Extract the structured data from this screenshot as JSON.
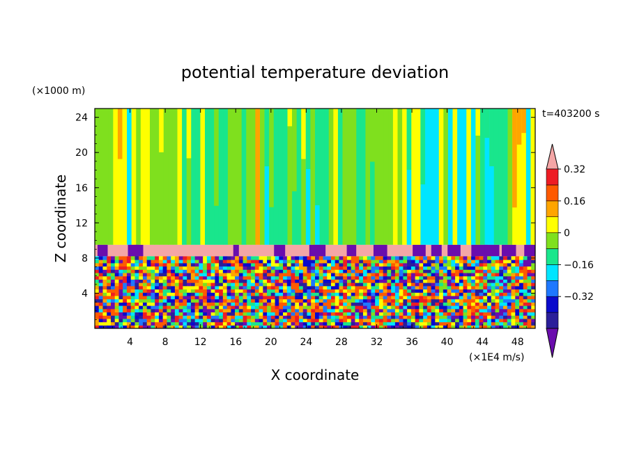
{
  "chart_data": {
    "type": "heatmap",
    "title": "potential temperature deviation",
    "xlabel": "X coordinate",
    "ylabel": "Z coordinate",
    "x_unit": "(×1E4 m/s)",
    "y_unit": "(×1000 m)",
    "time_label": "t=403200 s",
    "xlim": [
      0,
      50
    ],
    "ylim": [
      0,
      25
    ],
    "x_ticks": [
      "4",
      "8",
      "12",
      "16",
      "20",
      "24",
      "28",
      "32",
      "36",
      "40",
      "44",
      "48"
    ],
    "y_ticks": [
      "4",
      "8",
      "12",
      "16",
      "20",
      "24"
    ],
    "colorbar": {
      "levels": [
        -0.48,
        -0.4,
        -0.32,
        -0.24,
        -0.16,
        -0.08,
        0,
        0.08,
        0.16,
        0.24,
        0.32,
        0.4
      ],
      "labels": [
        "0.32",
        "0.16",
        "0",
        "−0.16",
        "−0.32"
      ],
      "colors": [
        "#6a0dad",
        "#2b1f9a",
        "#0a0acc",
        "#1e78ff",
        "#00e5ff",
        "#19e68c",
        "#7fe01e",
        "#ffff00",
        "#ffa500",
        "#ff5a00",
        "#ee1c24",
        "#f4a6a6"
      ]
    },
    "regions": {
      "upper_layer_z": [
        9.5,
        25
      ],
      "band_z": [
        8.2,
        9.5
      ],
      "lower_layer_z": [
        0,
        8.2
      ]
    }
  }
}
